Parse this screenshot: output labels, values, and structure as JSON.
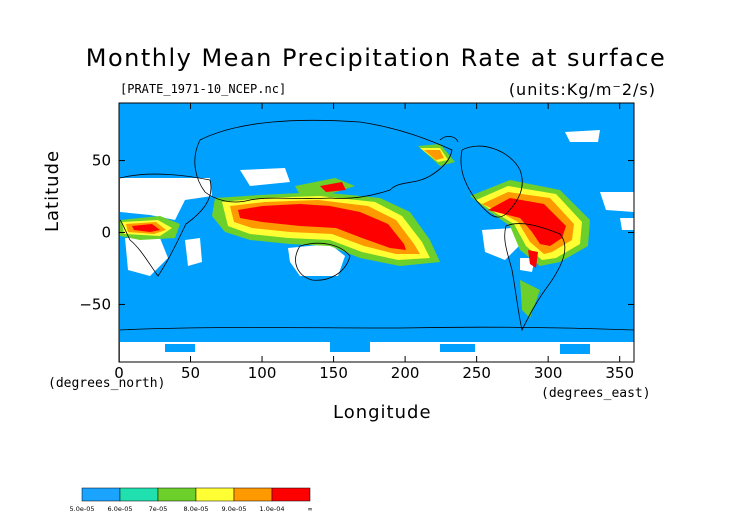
{
  "title": "Monthly Mean Precipitation Rate at surface",
  "file_label": "[PRATE_1971-10_NCEP.nc]",
  "units_label": "(units:Kg/m^-2/s)",
  "axes": {
    "xlabel": "Longitude",
    "ylabel": "Latitude",
    "x_unit": "(degrees_east)",
    "y_unit": "(degrees_north)",
    "x_ticks": [
      "0",
      "50",
      "100",
      "150",
      "200",
      "250",
      "300",
      "350"
    ],
    "y_ticks": [
      "50",
      "0",
      "−50"
    ],
    "xlim": [
      0,
      360
    ],
    "ylim": [
      -90,
      90
    ]
  },
  "colorbar": {
    "colors": [
      "#1aa3ff",
      "#20e0b0",
      "#6ccf2a",
      "#ffff33",
      "#ff9900",
      "#ff0000"
    ],
    "tick_labels": [
      "5.0e-05",
      "6.0e-05",
      "7e-05",
      "8.0e-05",
      "9.0e-05",
      "1.0e-04",
      "∞"
    ]
  },
  "map_colors": {
    "ocean_low": "#00a0ff",
    "missing": "#ffffff",
    "coast": "#000000"
  }
}
